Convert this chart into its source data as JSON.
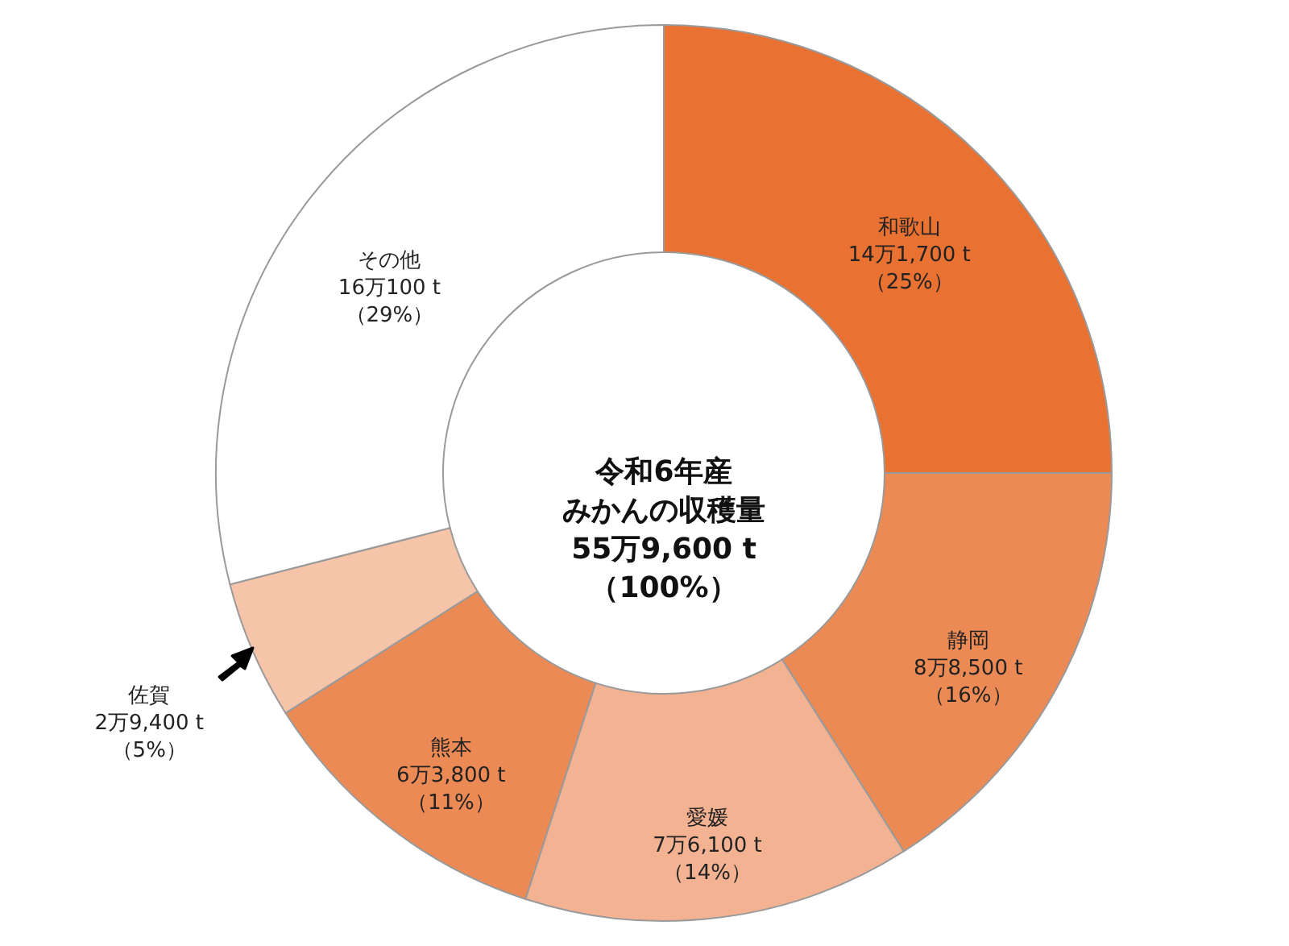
{
  "chart_data": {
    "type": "donut",
    "title": "令和6年産",
    "subtitle": "みかんの収穫量",
    "annotations": [
      "55万9,600 t",
      "（100%）"
    ],
    "categories": [
      "和歌山",
      "静岡",
      "愛媛",
      "熊本",
      "佐賀",
      "その他"
    ],
    "values": [
      25,
      16,
      14,
      11,
      5,
      29
    ],
    "value_labels": [
      "14万1,700 t\n（25%）",
      "8万8,500 t\n（16%）",
      "7万6,100 t\n（14%）",
      "6万3,800 t\n（11%）",
      "2万9,400 t\n（5%）",
      "16万100 t\n（29%）"
    ],
    "colors": [
      "#e97132",
      "#ec8a55",
      "#f3b393",
      "#ec8a55",
      "#f6c4a8",
      "#ffffff"
    ]
  }
}
